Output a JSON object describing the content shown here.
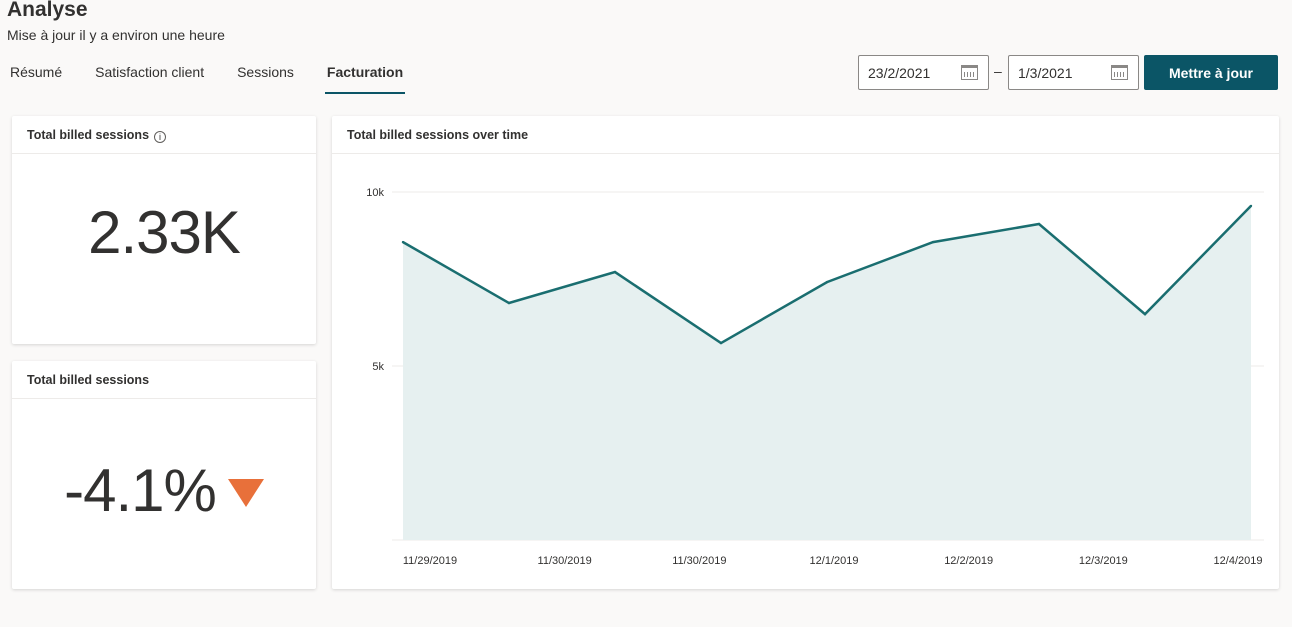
{
  "header": {
    "title": "Analyse",
    "subtitle": "Mise à jour il y a environ une heure"
  },
  "tabs": [
    {
      "label": "Résumé"
    },
    {
      "label": "Satisfaction client"
    },
    {
      "label": "Sessions"
    },
    {
      "label": "Facturation",
      "active": true
    }
  ],
  "date_range": {
    "start": "23/2/2021",
    "separator": "–",
    "end": "1/3/2021",
    "icon": "calendar-icon"
  },
  "update_button": "Mettre à jour",
  "accent_color": "#0b5566",
  "kpi1": {
    "title": "Total billed sessions",
    "value": "2.33K",
    "icon": "info-icon",
    "info_glyph": "i"
  },
  "kpi2": {
    "title": "Total billed sessions",
    "value": "-4.1%",
    "trend": "down",
    "trend_color": "#e8703a"
  },
  "chart": {
    "title": "Total billed sessions over time"
  },
  "chart_data": {
    "type": "area",
    "title": "Total billed sessions over time",
    "values": [
      8560,
      6810,
      7700,
      5660,
      7410,
      8560,
      9080,
      6490,
      9600
    ],
    "x_tick_labels": [
      "11/29/2019",
      "11/30/2019",
      "11/30/2019",
      "12/1/2019",
      "12/2/2019",
      "12/3/2019",
      "12/4/2019"
    ],
    "y_ticks": [
      {
        "value": 10000,
        "label": "10k"
      },
      {
        "value": 5000,
        "label": "5k"
      }
    ],
    "ylim": [
      0,
      10000
    ],
    "grid": true,
    "line_color": "#1a6e70",
    "fill_color": "#e6f0f0"
  }
}
